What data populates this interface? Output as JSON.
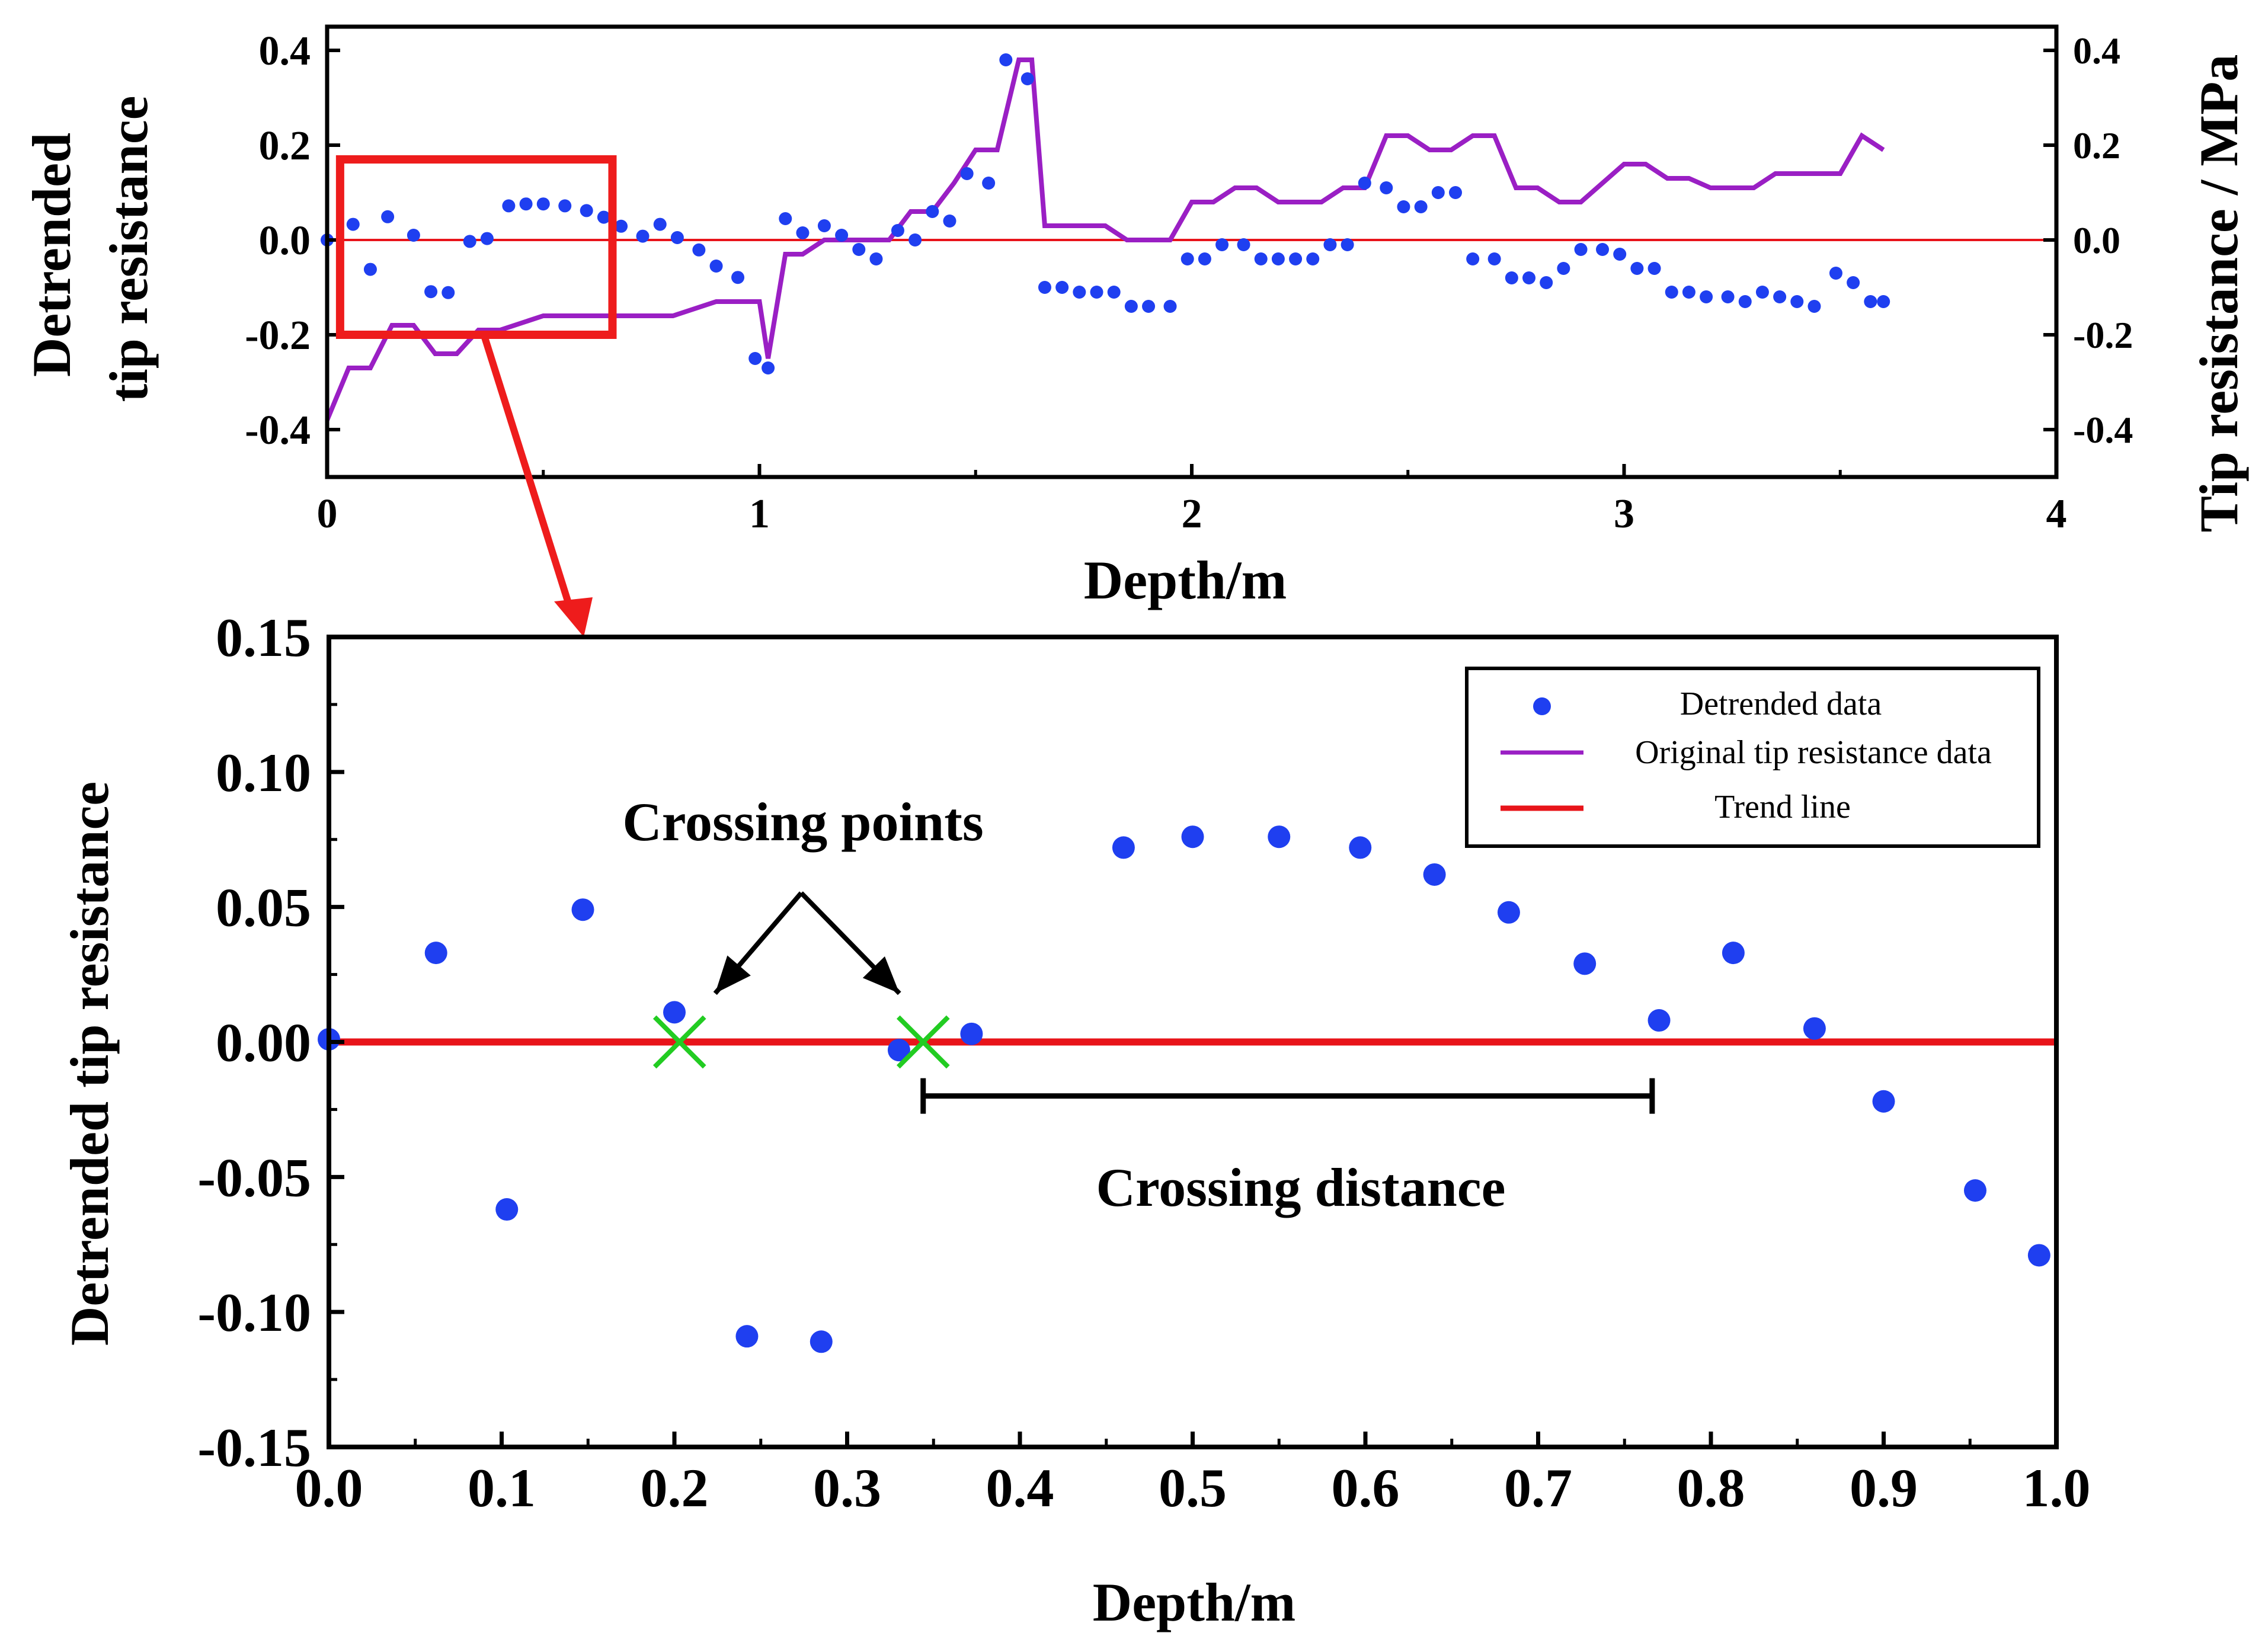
{
  "colors": {
    "detrended": "#1f3ff0",
    "original": "#9a1fc4",
    "trend": "#e8141a",
    "crossing": "#22cc22",
    "highlight": "#ee1c1c",
    "axis": "#000000"
  },
  "chart_data": [
    {
      "type": "scatter",
      "panel": "overview",
      "xlabel": "Depth/m",
      "ylabel_left": [
        "Detrended",
        "tip resistance"
      ],
      "ylabel_right": "Tip resistance / MPa",
      "xlim": [
        0,
        4
      ],
      "ylim_left": [
        -0.5,
        0.45
      ],
      "ylim_right": [
        -0.5,
        0.45
      ],
      "x_ticks": [
        "0",
        "1",
        "2",
        "3",
        "4"
      ],
      "y_ticks_left": [
        "-0.4",
        "-0.2",
        "0.0",
        "0.2",
        "0.4"
      ],
      "y_ticks_right": [
        "-0.4",
        "-0.2",
        "0.0",
        "0.2",
        "0.4"
      ],
      "highlight_box": {
        "x": [
          0.03,
          0.66
        ],
        "y": [
          -0.2,
          0.17
        ]
      },
      "series": [
        {
          "name": "Detrended data",
          "kind": "scatter",
          "x": [
            0.0,
            0.06,
            0.1,
            0.14,
            0.2,
            0.24,
            0.28,
            0.33,
            0.37,
            0.42,
            0.46,
            0.5,
            0.55,
            0.6,
            0.64,
            0.68,
            0.73,
            0.77,
            0.81,
            0.86,
            0.9,
            0.95,
            0.99,
            1.02,
            1.06,
            1.1,
            1.15,
            1.19,
            1.23,
            1.27,
            1.32,
            1.36,
            1.4,
            1.44,
            1.48,
            1.53,
            1.57,
            1.62,
            1.66,
            1.7,
            1.74,
            1.78,
            1.82,
            1.86,
            1.9,
            1.95,
            1.99,
            2.03,
            2.07,
            2.12,
            2.16,
            2.2,
            2.24,
            2.28,
            2.32,
            2.36,
            2.4,
            2.45,
            2.49,
            2.53,
            2.57,
            2.61,
            2.65,
            2.7,
            2.74,
            2.78,
            2.82,
            2.86,
            2.9,
            2.95,
            2.99,
            3.03,
            3.07,
            3.11,
            3.15,
            3.19,
            3.24,
            3.28,
            3.32,
            3.36,
            3.4,
            3.44,
            3.49,
            3.53,
            3.57,
            3.6
          ],
          "values": [
            0.0,
            0.033,
            -0.062,
            0.049,
            0.01,
            -0.109,
            -0.111,
            -0.003,
            0.003,
            0.072,
            0.076,
            0.076,
            0.072,
            0.062,
            0.048,
            0.029,
            0.008,
            0.033,
            0.005,
            -0.021,
            -0.055,
            -0.079,
            -0.25,
            -0.27,
            0.045,
            0.015,
            0.03,
            0.01,
            -0.02,
            -0.04,
            0.02,
            0.0,
            0.06,
            0.04,
            0.14,
            0.12,
            0.38,
            0.34,
            -0.1,
            -0.1,
            -0.11,
            -0.11,
            -0.11,
            -0.14,
            -0.14,
            -0.14,
            -0.04,
            -0.04,
            -0.01,
            -0.01,
            -0.04,
            -0.04,
            -0.04,
            -0.04,
            -0.01,
            -0.01,
            0.12,
            0.11,
            0.07,
            0.07,
            0.1,
            0.1,
            -0.04,
            -0.04,
            -0.08,
            -0.08,
            -0.09,
            -0.06,
            -0.02,
            -0.02,
            -0.03,
            -0.06,
            -0.06,
            -0.11,
            -0.11,
            -0.12,
            -0.12,
            -0.13,
            -0.11,
            -0.12,
            -0.13,
            -0.14,
            -0.07,
            -0.09,
            -0.13,
            -0.13
          ]
        },
        {
          "name": "Original tip resistance data",
          "kind": "line",
          "x": [
            0.0,
            0.05,
            0.1,
            0.15,
            0.2,
            0.25,
            0.3,
            0.35,
            0.4,
            0.5,
            0.6,
            0.7,
            0.8,
            0.9,
            1.0,
            1.02,
            1.06,
            1.1,
            1.15,
            1.2,
            1.25,
            1.3,
            1.35,
            1.4,
            1.45,
            1.5,
            1.55,
            1.6,
            1.63,
            1.66,
            1.7,
            1.8,
            1.85,
            1.9,
            1.95,
            2.0,
            2.05,
            2.1,
            2.15,
            2.2,
            2.25,
            2.3,
            2.35,
            2.4,
            2.45,
            2.5,
            2.55,
            2.6,
            2.65,
            2.7,
            2.75,
            2.8,
            2.85,
            2.9,
            3.0,
            3.05,
            3.1,
            3.15,
            3.2,
            3.3,
            3.35,
            3.4,
            3.5,
            3.55,
            3.6
          ],
          "values": [
            -0.38,
            -0.27,
            -0.27,
            -0.18,
            -0.18,
            -0.24,
            -0.24,
            -0.19,
            -0.19,
            -0.16,
            -0.16,
            -0.16,
            -0.16,
            -0.13,
            -0.13,
            -0.25,
            -0.03,
            -0.03,
            0.0,
            0.0,
            0.0,
            0.0,
            0.06,
            0.06,
            0.12,
            0.19,
            0.19,
            0.38,
            0.38,
            0.03,
            0.03,
            0.03,
            0.0,
            0.0,
            0.0,
            0.08,
            0.08,
            0.11,
            0.11,
            0.08,
            0.08,
            0.08,
            0.11,
            0.11,
            0.22,
            0.22,
            0.19,
            0.19,
            0.22,
            0.22,
            0.11,
            0.11,
            0.08,
            0.08,
            0.16,
            0.16,
            0.13,
            0.13,
            0.11,
            0.11,
            0.14,
            0.14,
            0.14,
            0.22,
            0.19
          ]
        },
        {
          "name": "Trend line",
          "kind": "line",
          "x": [
            0,
            4
          ],
          "values": [
            0,
            0
          ]
        }
      ]
    },
    {
      "type": "scatter",
      "panel": "zoom",
      "xlabel": "Depth/m",
      "ylabel": "Detrended tip resistance",
      "xlim": [
        0,
        1.0
      ],
      "ylim": [
        -0.15,
        0.15
      ],
      "x_ticks": [
        "0.0",
        "0.1",
        "0.2",
        "0.3",
        "0.4",
        "0.5",
        "0.6",
        "0.7",
        "0.8",
        "0.9",
        "1.0"
      ],
      "y_ticks": [
        "-0.15",
        "-0.10",
        "-0.05",
        "0.00",
        "0.05",
        "0.10",
        "0.15"
      ],
      "legend": {
        "position": "top-right",
        "entries": [
          "Detrended data",
          "Original tip resistance data",
          "Trend line"
        ]
      },
      "series": [
        {
          "name": "Detrended data",
          "kind": "scatter",
          "x": [
            0.0,
            0.062,
            0.103,
            0.147,
            0.2,
            0.242,
            0.285,
            0.33,
            0.372,
            0.46,
            0.5,
            0.55,
            0.597,
            0.64,
            0.683,
            0.727,
            0.77,
            0.813,
            0.86,
            0.9,
            0.953,
            0.99
          ],
          "values": [
            0.001,
            0.033,
            -0.062,
            0.049,
            0.011,
            -0.109,
            -0.111,
            -0.003,
            0.003,
            0.072,
            0.076,
            0.076,
            0.072,
            0.062,
            0.048,
            0.029,
            0.008,
            0.033,
            0.005,
            -0.022,
            -0.055,
            -0.079
          ]
        },
        {
          "name": "Trend line",
          "kind": "line",
          "x": [
            0,
            1.0
          ],
          "values": [
            0,
            0
          ]
        }
      ],
      "crossing_points": {
        "x": [
          0.203,
          0.344
        ],
        "values": [
          0,
          0
        ]
      },
      "annotations": {
        "crossing_points_label": "Crossing points",
        "crossing_distance_label": "Crossing distance",
        "crossing_distance_span": {
          "x": [
            0.344,
            0.766
          ],
          "value": -0.02
        }
      }
    }
  ]
}
